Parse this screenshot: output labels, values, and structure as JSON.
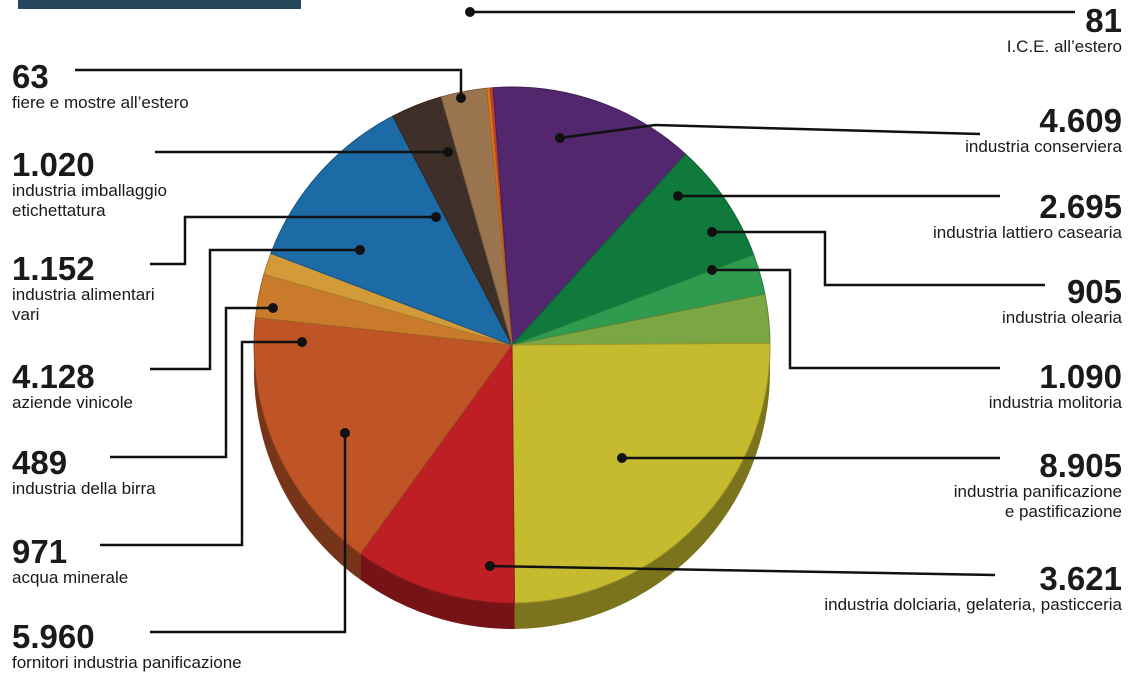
{
  "colors": {
    "title_bar": "#26465d",
    "leader": "#111111",
    "text": "#1a1a1a"
  },
  "chart_data": {
    "type": "pie",
    "style": "3d",
    "title": "",
    "slices": [
      {
        "value": 81,
        "value_label": "81",
        "caption": [
          "I.C.E. all’estero"
        ],
        "color": "#c0392b",
        "side": "right"
      },
      {
        "value": 4609,
        "value_label": "4.609",
        "caption": [
          "industria conserviera"
        ],
        "color": "#52276e",
        "side": "right"
      },
      {
        "value": 2695,
        "value_label": "2.695",
        "caption": [
          "industria lattiero casearia"
        ],
        "color": "#0f7a3c",
        "side": "right"
      },
      {
        "value": 905,
        "value_label": "905",
        "caption": [
          "industria olearia"
        ],
        "color": "#2e9b4e",
        "side": "right"
      },
      {
        "value": 1090,
        "value_label": "1.090",
        "caption": [
          "industria molitoria"
        ],
        "color": "#7aa644",
        "side": "right"
      },
      {
        "value": 8905,
        "value_label": "8.905",
        "caption": [
          "industria panificazione",
          "e pastificazione"
        ],
        "color": "#c6bb2f",
        "side": "right"
      },
      {
        "value": 3621,
        "value_label": "3.621",
        "caption": [
          "industria dolciaria, gelateria, pasticceria"
        ],
        "color": "#bd1f25",
        "side": "right"
      },
      {
        "value": 5960,
        "value_label": "5.960",
        "caption": [
          "fornitori industria panificazione"
        ],
        "color": "#bf5526",
        "side": "left"
      },
      {
        "value": 971,
        "value_label": "971",
        "caption": [
          "acqua minerale"
        ],
        "color": "#c97b2b",
        "side": "left"
      },
      {
        "value": 489,
        "value_label": "489",
        "caption": [
          "industria della birra"
        ],
        "color": "#d39a3a",
        "side": "left"
      },
      {
        "value": 4128,
        "value_label": "4.128",
        "caption": [
          "aziende vinicole"
        ],
        "color": "#1c6aa6",
        "side": "left"
      },
      {
        "value": 1152,
        "value_label": "1.152",
        "caption": [
          "industria alimentari",
          "vari"
        ],
        "color": "#3e2f28",
        "side": "left"
      },
      {
        "value": 1020,
        "value_label": "1.020",
        "caption": [
          "industria imballaggio",
          "etichettatura"
        ],
        "color": "#9a7550",
        "side": "left"
      },
      {
        "value": 63,
        "value_label": "63",
        "caption": [
          "fiere e mostre all’estero"
        ],
        "color": "#e07a1c",
        "side": "left"
      }
    ]
  }
}
